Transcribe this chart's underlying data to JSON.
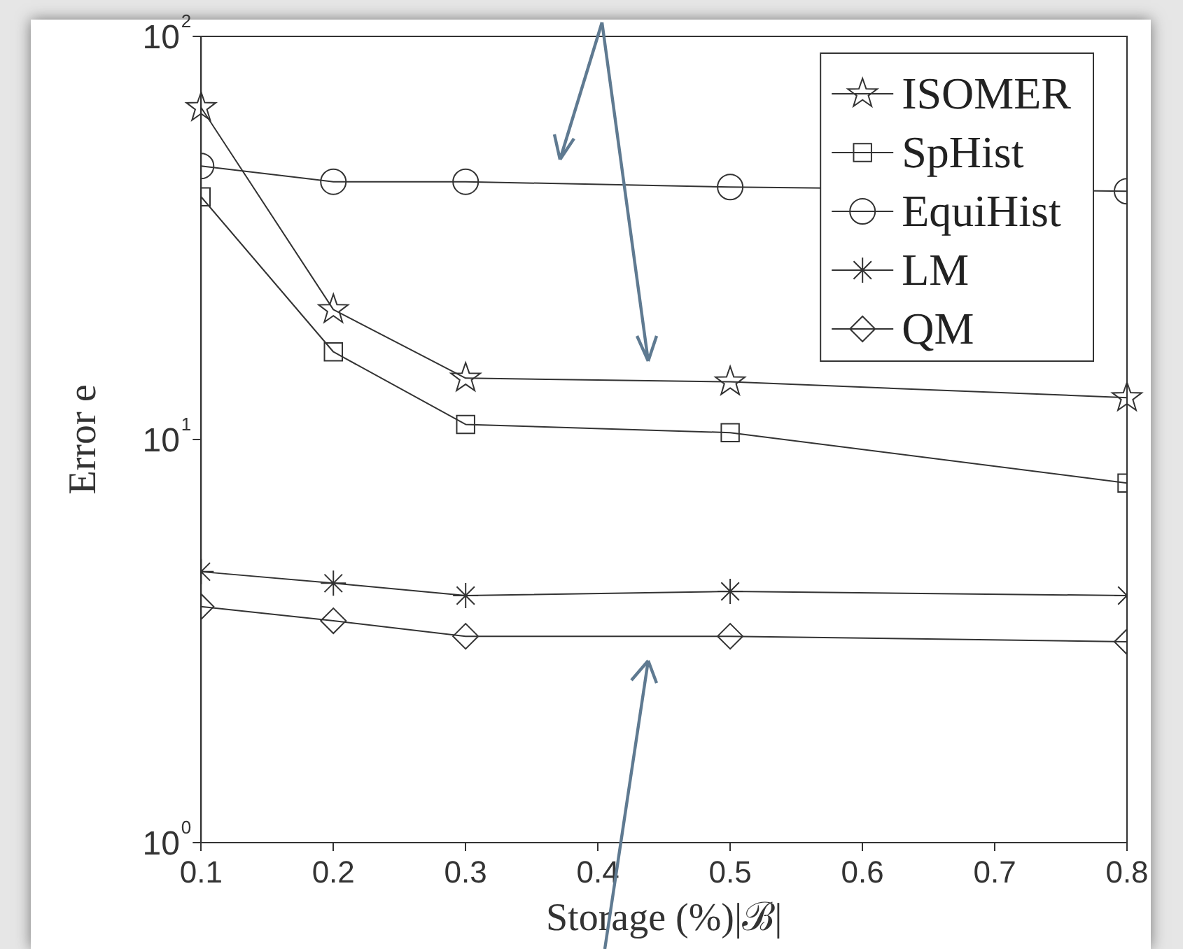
{
  "chart_data": {
    "type": "line",
    "xlabel": "Storage (%)|ℬ|",
    "ylabel": "Error e",
    "x": [
      0.1,
      0.2,
      0.3,
      0.5,
      0.8
    ],
    "series": [
      {
        "name": "ISOMER",
        "color": "#333333",
        "marker": "star",
        "values": [
          66.6,
          21,
          14.2,
          13.9,
          12.7
        ]
      },
      {
        "name": "SpHist",
        "color": "#333333",
        "marker": "square",
        "values": [
          40,
          16.5,
          10.9,
          10.4,
          7.8
        ]
      },
      {
        "name": "EquiHist",
        "color": "#333333",
        "marker": "circle",
        "values": [
          47.7,
          43.6,
          43.6,
          42.3,
          41.3
        ]
      },
      {
        "name": "LM",
        "color": "#333333",
        "marker": "cross",
        "values": [
          4.7,
          4.4,
          4.1,
          4.2,
          4.1
        ]
      },
      {
        "name": "QM",
        "color": "#333333",
        "marker": "diamond",
        "values": [
          3.85,
          3.55,
          3.25,
          3.25,
          3.15
        ]
      }
    ],
    "log": "y",
    "xlim": [
      0.1,
      0.8
    ],
    "xticks": [
      0.1,
      0.2,
      0.3,
      0.4,
      0.5,
      0.6,
      0.7,
      0.8
    ],
    "ylim": [
      1,
      100
    ],
    "yticks": [
      {
        "value": 1,
        "label": "10$^{0}$"
      },
      {
        "value": 10,
        "label": "10$^{1}$"
      },
      {
        "value": 100,
        "label": "10$^{2}$"
      }
    ],
    "grid": false,
    "legend": "top right",
    "line_style": "solid"
  }
}
